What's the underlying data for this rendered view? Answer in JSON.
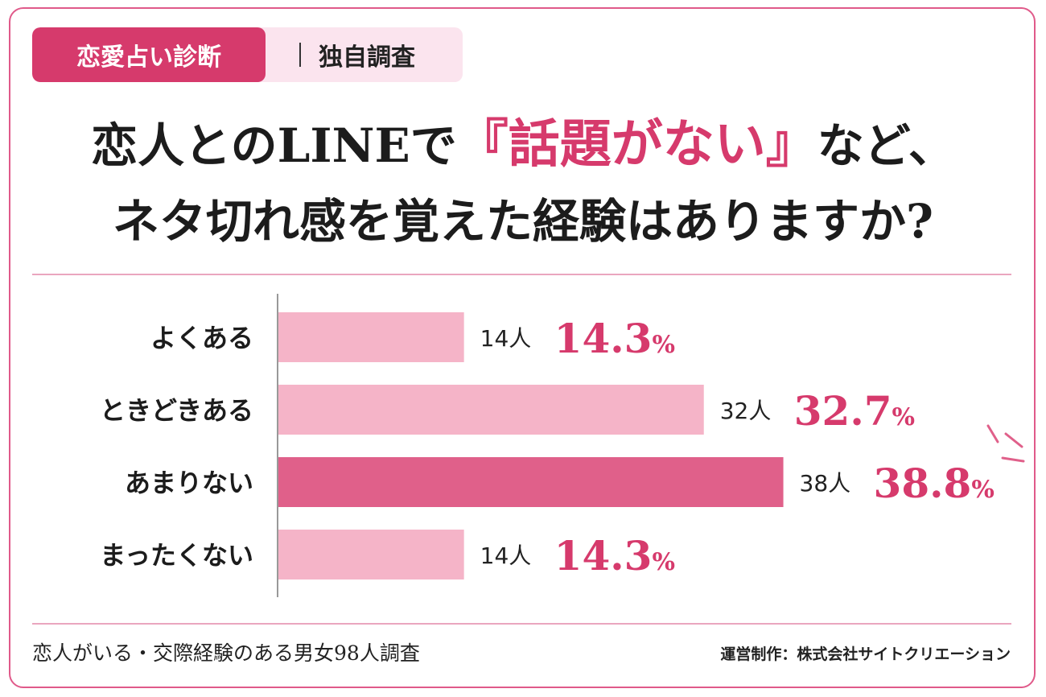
{
  "header": {
    "tag_main": "恋愛占い診断",
    "tag_sub": "独自調査"
  },
  "title": {
    "line1_pre": "恋人とのLINEで",
    "line1_open": "『",
    "line1_highlight": "話題がない",
    "line1_close": "』",
    "line1_post": "など、",
    "line2": "ネタ切れ感を覚えた経験はありますか?"
  },
  "chart_data": {
    "type": "bar",
    "orientation": "horizontal",
    "categories": [
      "よくある",
      "ときどきある",
      "あまりない",
      "まったくない"
    ],
    "counts": [
      14,
      32,
      38,
      14
    ],
    "count_unit": "人",
    "values": [
      14.3,
      32.7,
      38.8,
      14.3
    ],
    "value_unit": "%",
    "highlight_index": 2,
    "colors": {
      "bar": "#f5b4c8",
      "bar_highlight": "#e0608a",
      "value_text": "#d63a6c",
      "axis": "#999999"
    }
  },
  "footer": {
    "left": "恋人がいる・交際経験のある男女98人調査",
    "right": "運営制作：株式会社サイトクリエーション"
  }
}
